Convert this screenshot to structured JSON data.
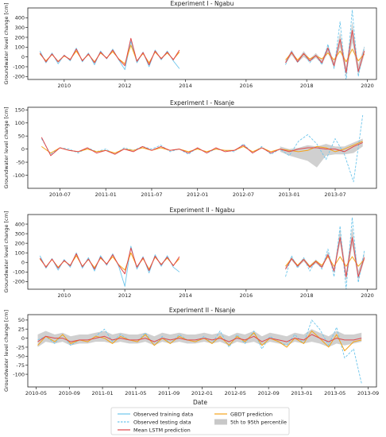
{
  "figure": {
    "xlabel": "Date"
  },
  "legend": {
    "items": [
      {
        "key": "obs_train",
        "label": "Observed training data",
        "color": "#6ec6ec",
        "style": "solid"
      },
      {
        "key": "obs_test",
        "label": "Observed testing data",
        "color": "#6ec6ec",
        "style": "dashed"
      },
      {
        "key": "lstm",
        "label": "Mean LSTM prediction",
        "color": "#e0474c",
        "style": "solid"
      },
      {
        "key": "gbdt",
        "label": "GBDT prediction",
        "color": "#f5a31a",
        "style": "solid"
      },
      {
        "key": "band",
        "label": "5th to 95th percentile",
        "color": "#c8c8c8",
        "style": "fill"
      }
    ]
  },
  "chart_data": [
    {
      "type": "line",
      "title": "Experiment I - Ngabu",
      "ylabel": "Groundwater level change [cm]",
      "xlim": [
        2008.8,
        2020.3
      ],
      "ylim": [
        -230,
        500
      ],
      "xticks": [
        2010,
        2012,
        2014,
        2016,
        2018,
        2020
      ],
      "xtick_labels": [
        "2010",
        "2012",
        "2014",
        "2016",
        "2018",
        "2020"
      ],
      "yticks": [
        -200,
        -100,
        0,
        100,
        200,
        300,
        400
      ],
      "segments": [
        {
          "x": [
            2009.2,
            2009.4,
            2009.6,
            2009.8,
            2010.0,
            2010.2,
            2010.4,
            2010.6,
            2010.8,
            2011.0,
            2011.2,
            2011.4,
            2011.6,
            2011.8,
            2012.0,
            2012.2,
            2012.4,
            2012.6,
            2012.8,
            2013.0,
            2013.2,
            2013.4,
            2013.6,
            2013.8
          ],
          "observed": [
            60,
            -60,
            40,
            -70,
            20,
            -40,
            90,
            -50,
            40,
            -80,
            60,
            -20,
            80,
            -30,
            -130,
            160,
            -60,
            50,
            -100,
            70,
            -30,
            60,
            -40,
            -120
          ],
          "lstm": [
            40,
            -50,
            30,
            -50,
            15,
            -30,
            80,
            -40,
            30,
            -60,
            50,
            -15,
            70,
            -25,
            -90,
            190,
            -45,
            45,
            -80,
            60,
            -20,
            50,
            -30,
            70
          ],
          "gbdt": [
            30,
            -40,
            25,
            -45,
            10,
            -25,
            60,
            -35,
            25,
            -50,
            40,
            -10,
            55,
            -20,
            -70,
            120,
            -40,
            35,
            -60,
            50,
            -15,
            40,
            -25,
            50
          ]
        },
        {
          "x": [
            2017.3,
            2017.5,
            2017.7,
            2017.9,
            2018.1,
            2018.3,
            2018.5,
            2018.7,
            2018.9,
            2019.1,
            2019.3,
            2019.5,
            2019.7,
            2019.9
          ],
          "observed": [
            -80,
            60,
            -60,
            40,
            -60,
            20,
            -80,
            130,
            -120,
            360,
            -250,
            480,
            -200,
            100
          ],
          "lstm": [
            -60,
            50,
            -50,
            35,
            -40,
            15,
            -60,
            90,
            -90,
            180,
            -160,
            270,
            -150,
            60
          ],
          "gbdt": [
            -30,
            40,
            -30,
            30,
            -20,
            10,
            -20,
            40,
            -30,
            60,
            -50,
            80,
            -40,
            30
          ],
          "band_low": [
            -70,
            20,
            -60,
            0,
            -50,
            -10,
            -70,
            40,
            -110,
            100,
            -200,
            150,
            -190,
            20
          ],
          "band_high": [
            -40,
            70,
            -30,
            60,
            -20,
            40,
            -30,
            120,
            -50,
            250,
            -100,
            360,
            -80,
            110
          ]
        }
      ]
    },
    {
      "type": "line",
      "title": "Experiment I - Nsanje",
      "ylabel": "Groundwater level change [cm]",
      "xlim": [
        2010.15,
        2013.95
      ],
      "ylim": [
        -150,
        160
      ],
      "xticks": [
        2010.5,
        2011.0,
        2011.5,
        2012.0,
        2012.5,
        2013.0,
        2013.5
      ],
      "xtick_labels": [
        "2010-07",
        "2011-01",
        "2011-07",
        "2012-01",
        "2012-07",
        "2013-01",
        "2013-07"
      ],
      "yticks": [
        -100,
        -50,
        0,
        50,
        100,
        150
      ],
      "x": [
        2010.3,
        2010.4,
        2010.5,
        2010.6,
        2010.7,
        2010.8,
        2010.9,
        2011.0,
        2011.1,
        2011.2,
        2011.3,
        2011.4,
        2011.5,
        2011.6,
        2011.7,
        2011.8,
        2011.9,
        2012.0,
        2012.1,
        2012.2,
        2012.3,
        2012.4,
        2012.5,
        2012.6,
        2012.7,
        2012.8,
        2012.9,
        2013.0,
        2013.1,
        2013.2,
        2013.3,
        2013.4,
        2013.5,
        2013.6,
        2013.7,
        2013.8
      ],
      "observed": [
        40,
        -20,
        5,
        0,
        -15,
        5,
        -10,
        0,
        -20,
        5,
        -5,
        10,
        0,
        15,
        -10,
        0,
        -20,
        5,
        -15,
        0,
        -5,
        -10,
        20,
        -15,
        10,
        -20,
        0,
        -25,
        30,
        55,
        20,
        -40,
        40,
        -20,
        -125,
        130
      ],
      "lstm": [
        45,
        -25,
        5,
        -5,
        -10,
        5,
        -15,
        -5,
        -20,
        0,
        -10,
        10,
        -5,
        10,
        -5,
        0,
        -15,
        5,
        -15,
        5,
        -10,
        -5,
        15,
        -15,
        5,
        -15,
        0,
        -10,
        0,
        5,
        5,
        0,
        0,
        -10,
        10,
        25
      ],
      "gbdt": [
        10,
        -15,
        5,
        -5,
        -10,
        0,
        -10,
        -5,
        -15,
        0,
        -5,
        5,
        -5,
        5,
        -5,
        0,
        -10,
        0,
        -10,
        0,
        -5,
        -5,
        10,
        -10,
        5,
        -10,
        0,
        -5,
        -10,
        -5,
        10,
        5,
        -10,
        0,
        15,
        30
      ],
      "band_low": [
        null,
        null,
        null,
        null,
        null,
        null,
        null,
        null,
        null,
        null,
        null,
        null,
        null,
        null,
        null,
        null,
        null,
        null,
        null,
        null,
        null,
        null,
        null,
        null,
        null,
        null,
        -10,
        -25,
        -35,
        -45,
        -70,
        -25,
        -20,
        -20,
        -15,
        10
      ],
      "band_high": [
        null,
        null,
        null,
        null,
        null,
        null,
        null,
        null,
        null,
        null,
        null,
        null,
        null,
        null,
        null,
        null,
        null,
        null,
        null,
        null,
        null,
        null,
        null,
        null,
        null,
        null,
        10,
        0,
        5,
        15,
        10,
        20,
        10,
        10,
        25,
        40
      ]
    },
    {
      "type": "line",
      "title": "Experiment II - Ngabu",
      "ylabel": "Groundwater level change [cm]",
      "xlim": [
        2008.8,
        2020.3
      ],
      "ylim": [
        -280,
        500
      ],
      "xticks": [
        2010,
        2012,
        2014,
        2016,
        2018,
        2020
      ],
      "xtick_labels": [
        "2010",
        "2012",
        "2014",
        "2016",
        "2018",
        "2020"
      ],
      "yticks": [
        -200,
        -100,
        0,
        100,
        200,
        300,
        400
      ],
      "segments": [
        {
          "x": [
            2009.2,
            2009.4,
            2009.6,
            2009.8,
            2010.0,
            2010.2,
            2010.4,
            2010.6,
            2010.8,
            2011.0,
            2011.2,
            2011.4,
            2011.6,
            2011.8,
            2012.0,
            2012.2,
            2012.4,
            2012.6,
            2012.8,
            2013.0,
            2013.2,
            2013.4,
            2013.6,
            2013.8
          ],
          "observed": [
            70,
            -60,
            40,
            -80,
            30,
            -50,
            100,
            -60,
            50,
            -90,
            70,
            -30,
            90,
            -40,
            -250,
            170,
            -70,
            60,
            -110,
            80,
            -40,
            70,
            -50,
            -100
          ],
          "lstm": [
            45,
            -50,
            35,
            -60,
            20,
            -35,
            90,
            -45,
            35,
            -70,
            55,
            -20,
            80,
            -30,
            -120,
            150,
            -50,
            50,
            -85,
            65,
            -25,
            55,
            -35,
            60
          ],
          "gbdt": [
            35,
            -45,
            30,
            -50,
            15,
            -30,
            70,
            -40,
            30,
            -55,
            45,
            -15,
            60,
            -25,
            -80,
            100,
            -45,
            40,
            -70,
            55,
            -20,
            45,
            -30,
            40
          ]
        },
        {
          "x": [
            2017.3,
            2017.5,
            2017.7,
            2017.9,
            2018.1,
            2018.3,
            2018.5,
            2018.7,
            2018.9,
            2019.1,
            2019.3,
            2019.5,
            2019.7,
            2019.9
          ],
          "observed": [
            -150,
            70,
            -60,
            50,
            -90,
            20,
            -70,
            140,
            -150,
            380,
            -280,
            470,
            -210,
            120
          ],
          "lstm": [
            -70,
            40,
            -40,
            30,
            -50,
            10,
            -50,
            80,
            -90,
            260,
            -150,
            260,
            -150,
            50
          ],
          "gbdt": [
            -40,
            40,
            -30,
            30,
            -40,
            15,
            -30,
            60,
            -40,
            60,
            -40,
            60,
            -40,
            30
          ],
          "band_low": [
            -80,
            20,
            -50,
            10,
            -60,
            -10,
            -60,
            60,
            -110,
            200,
            -200,
            180,
            -190,
            20
          ],
          "band_high": [
            -50,
            60,
            -25,
            50,
            -30,
            30,
            -30,
            110,
            -60,
            350,
            -100,
            370,
            -90,
            100
          ]
        }
      ]
    },
    {
      "type": "line",
      "title": "Experiment II - Nsanje",
      "ylabel": "Groundwater level change [cm]",
      "xlim": [
        2010.25,
        2013.75
      ],
      "ylim": [
        -135,
        65
      ],
      "xticks": [
        2010.333,
        2010.667,
        2011.0,
        2011.333,
        2011.667,
        2012.0,
        2012.333,
        2012.667,
        2013.0,
        2013.333,
        2013.667
      ],
      "xtick_labels": [
        "2010-05",
        "2010-09",
        "2011-01",
        "2011-05",
        "2011-09",
        "2012-01",
        "2012-05",
        "2012-09",
        "2013-01",
        "2013-05",
        "2013-09"
      ],
      "yticks": [
        -100,
        -75,
        -50,
        -25,
        0,
        25,
        50
      ],
      "x": [
        2010.35,
        2010.43,
        2010.52,
        2010.6,
        2010.68,
        2010.77,
        2010.85,
        2010.93,
        2011.02,
        2011.1,
        2011.18,
        2011.27,
        2011.35,
        2011.43,
        2011.52,
        2011.6,
        2011.68,
        2011.77,
        2011.85,
        2011.93,
        2012.02,
        2012.1,
        2012.18,
        2012.27,
        2012.35,
        2012.43,
        2012.52,
        2012.6,
        2012.68,
        2012.77,
        2012.85,
        2012.93,
        2013.02,
        2013.1,
        2013.18,
        2013.27,
        2013.35,
        2013.43,
        2013.52,
        2013.6
      ],
      "observed": [
        -5,
        5,
        -15,
        10,
        -20,
        -5,
        -10,
        5,
        25,
        -10,
        10,
        -5,
        -10,
        15,
        -20,
        5,
        -15,
        10,
        -5,
        -10,
        5,
        -15,
        20,
        -25,
        10,
        -15,
        20,
        -30,
        5,
        -10,
        -20,
        10,
        -15,
        50,
        25,
        -20,
        30,
        -55,
        -30,
        -125
      ],
      "lstm": [
        -10,
        5,
        0,
        0,
        -10,
        -5,
        -5,
        0,
        5,
        -5,
        0,
        -5,
        -5,
        0,
        -10,
        0,
        -5,
        0,
        -5,
        -5,
        0,
        -5,
        0,
        -10,
        0,
        -5,
        5,
        -10,
        0,
        -5,
        -10,
        0,
        -5,
        10,
        0,
        -10,
        0,
        -5,
        -5,
        0
      ],
      "gbdt": [
        -20,
        5,
        -10,
        10,
        -15,
        -5,
        -10,
        5,
        0,
        -15,
        5,
        -5,
        -10,
        10,
        -20,
        0,
        -15,
        5,
        -5,
        -10,
        0,
        -15,
        5,
        -20,
        5,
        -10,
        15,
        -20,
        0,
        -10,
        -25,
        0,
        -15,
        20,
        0,
        -25,
        10,
        -35,
        -10,
        -5
      ],
      "band_low": [
        -25,
        -10,
        -15,
        -10,
        -20,
        -15,
        -15,
        -10,
        -10,
        -15,
        -10,
        -15,
        -15,
        -10,
        -20,
        -10,
        -15,
        -10,
        -15,
        -15,
        -10,
        -15,
        -10,
        -20,
        -10,
        -15,
        -10,
        -20,
        -10,
        -15,
        -20,
        -10,
        -15,
        -10,
        -15,
        -25,
        -15,
        -20,
        -15,
        -10
      ],
      "band_high": [
        10,
        20,
        10,
        15,
        5,
        10,
        10,
        15,
        20,
        10,
        15,
        10,
        10,
        15,
        5,
        15,
        10,
        15,
        10,
        10,
        15,
        10,
        15,
        5,
        15,
        10,
        20,
        5,
        15,
        10,
        5,
        15,
        10,
        25,
        15,
        5,
        20,
        10,
        10,
        15
      ]
    }
  ]
}
